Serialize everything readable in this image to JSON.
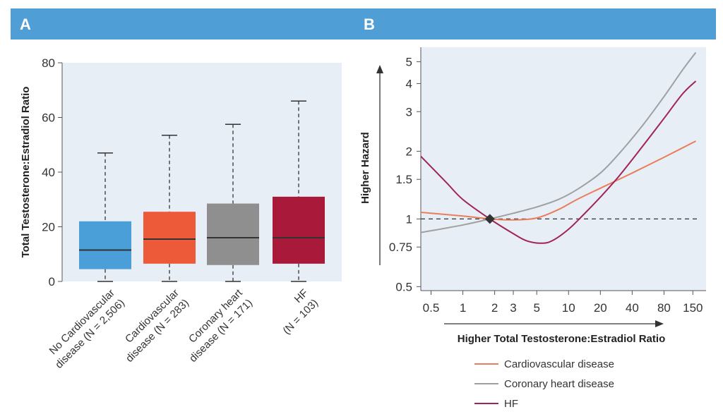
{
  "panels": {
    "a_label": "A",
    "b_label": "B"
  },
  "colors": {
    "header": "#4f9fd6",
    "plot_bg": "#e8eef6",
    "no_cvd": "#4a9fd9",
    "cvd": "#ec5a3a",
    "chd": "#8f8f8f",
    "hf": "#a8193a",
    "line_cvd": "#ea7e5c",
    "line_chd": "#a0a0a0",
    "line_hf": "#a0245a"
  },
  "chart_data": [
    {
      "type": "box",
      "ylabel": "Total Testosterone:Estradiol Ratio",
      "ylim": [
        0,
        80
      ],
      "yticks": [
        0,
        20,
        40,
        60,
        80
      ],
      "boxes": [
        {
          "label_lines": [
            "No Cardiovascular",
            "disease (N = 2,506)"
          ],
          "min": 0,
          "q1": 4.5,
          "median": 11.5,
          "q3": 22,
          "max": 47,
          "color_key": "no_cvd"
        },
        {
          "label_lines": [
            "Cardiovascular",
            "disease (N = 283)"
          ],
          "min": 0,
          "q1": 6.5,
          "median": 15.5,
          "q3": 25.5,
          "max": 53.5,
          "color_key": "cvd"
        },
        {
          "label_lines": [
            "Coronary heart",
            "disease (N = 171)"
          ],
          "min": 0,
          "q1": 6,
          "median": 16,
          "q3": 28.5,
          "max": 57.5,
          "color_key": "chd"
        },
        {
          "label_lines": [
            "HF",
            "(N = 103)"
          ],
          "min": 0,
          "q1": 6.5,
          "median": 16,
          "q3": 31,
          "max": 66,
          "color_key": "hf"
        }
      ]
    },
    {
      "type": "line",
      "xscale": "log",
      "yscale": "log",
      "xlabel": "Higher Total Testosterone:Estradiol Ratio",
      "ylabel": "Higher Hazard",
      "xticks": [
        0.5,
        1,
        2,
        3,
        5,
        10,
        20,
        40,
        80,
        150
      ],
      "xtick_labels": [
        "0.5",
        "1",
        "2",
        "3",
        "5",
        "10",
        "20",
        "40",
        "80",
        "150"
      ],
      "yticks": [
        0.5,
        0.75,
        1,
        1.5,
        2,
        3,
        4,
        5
      ],
      "ytick_labels": [
        "0.5",
        "0.75",
        "1",
        "1.5",
        "2",
        "3",
        "4",
        "5"
      ],
      "reference_line": 1,
      "reference_point": {
        "x": 1.8,
        "y": 1
      },
      "series": [
        {
          "name": "Cardiovascular disease",
          "color_key": "line_cvd",
          "x": [
            0.4,
            1,
            1.8,
            3,
            5,
            8,
            12,
            20,
            40,
            80,
            160
          ],
          "y": [
            1.07,
            1.03,
            1.0,
            0.99,
            1.01,
            1.1,
            1.22,
            1.37,
            1.6,
            1.88,
            2.22
          ]
        },
        {
          "name": "Coronary heart disease",
          "color_key": "line_chd",
          "x": [
            0.4,
            1,
            1.8,
            3,
            5,
            8,
            12,
            20,
            30,
            50,
            80,
            120,
            160
          ],
          "y": [
            0.87,
            0.94,
            1.0,
            1.06,
            1.13,
            1.22,
            1.35,
            1.6,
            1.95,
            2.6,
            3.5,
            4.6,
            5.5
          ]
        },
        {
          "name": "HF",
          "color_key": "line_hf",
          "x": [
            0.4,
            0.7,
            1,
            1.8,
            3,
            4,
            5.5,
            7,
            10,
            14,
            20,
            30,
            50,
            80,
            120,
            160
          ],
          "y": [
            1.9,
            1.45,
            1.22,
            1.0,
            0.86,
            0.8,
            0.78,
            0.8,
            0.9,
            1.05,
            1.25,
            1.55,
            2.1,
            2.8,
            3.6,
            4.1
          ]
        }
      ]
    }
  ]
}
